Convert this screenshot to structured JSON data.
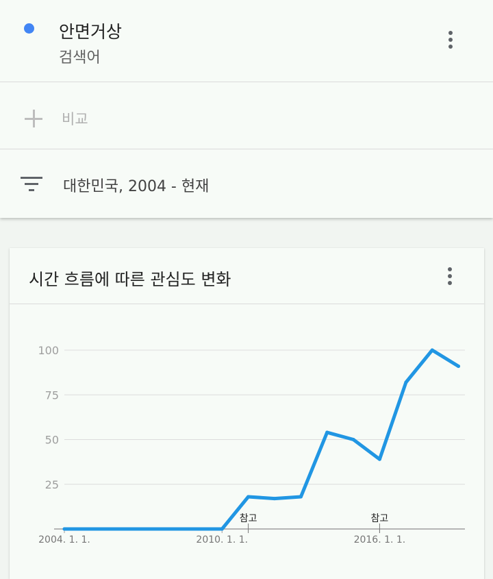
{
  "search_term": {
    "name": "안면거상",
    "type": "검색어",
    "color": "#4285f4"
  },
  "compare": {
    "label": "비교"
  },
  "filter": {
    "label": "대한민국, 2004 - 현재"
  },
  "card": {
    "title": "시간 흐름에 따른 관심도 변화"
  },
  "icons": {
    "dot": "term-color-dot",
    "more": "more-vert-icon",
    "plus": "plus-icon",
    "filter": "filter-list-icon"
  },
  "chart_data": {
    "type": "line",
    "title": "시간 흐름에 따른 관심도 변화",
    "xlabel": "",
    "ylabel": "",
    "x_range": [
      "2004-01-01",
      "2019-04-01"
    ],
    "ylim": [
      0,
      100
    ],
    "yticks": [
      25,
      50,
      75,
      100
    ],
    "ytick_labels": [
      "25",
      "50",
      "75",
      "100"
    ],
    "xticks": [
      "2004-01-01",
      "2010-01-01",
      "2016-01-01"
    ],
    "xtick_labels": [
      "2004. 1. 1.",
      "2010. 1. 1.",
      "2016. 1. 1."
    ],
    "grid": true,
    "line_color": "#2196e3",
    "series": [
      {
        "x": [
          "2004-01-01",
          "2010-01-01",
          "2011-01-01",
          "2012-01-01",
          "2013-01-01",
          "2014-01-01",
          "2015-01-01",
          "2016-01-01",
          "2017-01-01",
          "2018-01-01",
          "2019-01-01"
        ],
        "values": [
          0,
          0,
          18,
          17,
          18,
          54,
          50,
          39,
          82,
          100,
          91
        ]
      }
    ],
    "annotations": [
      {
        "x": "2011-01-01",
        "label": "참고"
      },
      {
        "x": "2016-01-01",
        "label": "참고"
      }
    ]
  }
}
